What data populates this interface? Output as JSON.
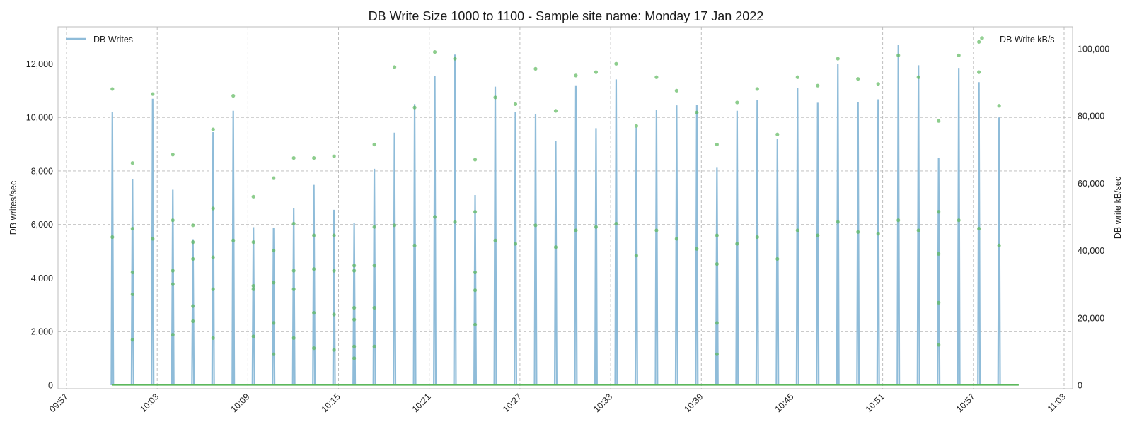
{
  "chart_data": {
    "type": "line",
    "title": "DB Write Size 1000 to 1100 - Sample site name: Monday 17 Jan 2022",
    "xlabel": "",
    "ylabel": "DB writes/sec",
    "y2label": "DB write kB/sec",
    "grid": true,
    "x_range": [
      "09:57",
      "11:03"
    ],
    "ylim": [
      0,
      13200
    ],
    "y2lim": [
      0,
      105000
    ],
    "x_ticks": [
      "09:57",
      "10:03",
      "10:09",
      "10:15",
      "10:21",
      "10:27",
      "10:33",
      "10:39",
      "10:45",
      "10:51",
      "10:57",
      "11:03"
    ],
    "y_ticks": [
      "0",
      "2,000",
      "4,000",
      "6,000",
      "8,000",
      "10,000",
      "12,000"
    ],
    "y_tick_values": [
      0,
      2000,
      4000,
      6000,
      8000,
      10000,
      12000
    ],
    "y2_ticks": [
      "0",
      "20,000",
      "40,000",
      "60,000",
      "80,000",
      "100,000"
    ],
    "y2_tick_values": [
      0,
      20000,
      40000,
      60000,
      80000,
      100000
    ],
    "legend": {
      "position": "top-left and top-right"
    },
    "series": [
      {
        "name": "DB Writes",
        "kind": "line",
        "axis": "left",
        "color": "#8fbcd9",
        "spikes": [
          {
            "x": "10:00:02",
            "y": 10200
          },
          {
            "x": "10:01:22",
            "y": 7700
          },
          {
            "x": "10:02:42",
            "y": 10700
          },
          {
            "x": "10:04:02",
            "y": 7300
          },
          {
            "x": "10:05:22",
            "y": 5450
          },
          {
            "x": "10:06:42",
            "y": 9450
          },
          {
            "x": "10:08:02",
            "y": 10250
          },
          {
            "x": "10:09:22",
            "y": 5900
          },
          {
            "x": "10:10:42",
            "y": 5880
          },
          {
            "x": "10:12:02",
            "y": 6620
          },
          {
            "x": "10:13:22",
            "y": 7480
          },
          {
            "x": "10:14:42",
            "y": 6550
          },
          {
            "x": "10:16:02",
            "y": 6050
          },
          {
            "x": "10:17:22",
            "y": 8080
          },
          {
            "x": "10:18:42",
            "y": 9430
          },
          {
            "x": "10:20:02",
            "y": 10500
          },
          {
            "x": "10:21:22",
            "y": 11550
          },
          {
            "x": "10:22:42",
            "y": 12350
          },
          {
            "x": "10:24:02",
            "y": 7100
          },
          {
            "x": "10:25:22",
            "y": 11150
          },
          {
            "x": "10:26:42",
            "y": 10200
          },
          {
            "x": "10:28:02",
            "y": 10130
          },
          {
            "x": "10:29:22",
            "y": 9120
          },
          {
            "x": "10:30:42",
            "y": 11200
          },
          {
            "x": "10:32:02",
            "y": 9600
          },
          {
            "x": "10:33:22",
            "y": 11420
          },
          {
            "x": "10:34:42",
            "y": 9620
          },
          {
            "x": "10:36:02",
            "y": 10280
          },
          {
            "x": "10:37:22",
            "y": 10450
          },
          {
            "x": "10:38:42",
            "y": 10470
          },
          {
            "x": "10:40:02",
            "y": 8120
          },
          {
            "x": "10:41:22",
            "y": 10250
          },
          {
            "x": "10:42:42",
            "y": 10640
          },
          {
            "x": "10:44:02",
            "y": 9200
          },
          {
            "x": "10:45:22",
            "y": 11100
          },
          {
            "x": "10:46:42",
            "y": 10550
          },
          {
            "x": "10:48:02",
            "y": 12000
          },
          {
            "x": "10:49:22",
            "y": 10560
          },
          {
            "x": "10:50:42",
            "y": 10680
          },
          {
            "x": "10:52:02",
            "y": 12700
          },
          {
            "x": "10:53:22",
            "y": 11950
          },
          {
            "x": "10:54:42",
            "y": 8500
          },
          {
            "x": "10:56:02",
            "y": 11850
          },
          {
            "x": "10:57:22",
            "y": 11320
          },
          {
            "x": "10:58:42",
            "y": 10000
          }
        ]
      },
      {
        "name": "DB Write kB/s",
        "kind": "scatter",
        "axis": "right",
        "color": "#5cb85c",
        "clusters": [
          {
            "x": "10:00:02",
            "y": [
              88000,
              44000
            ]
          },
          {
            "x": "10:01:22",
            "y": [
              66000,
              46500,
              33500,
              27000,
              13500
            ]
          },
          {
            "x": "10:02:42",
            "y": [
              86500,
              43500
            ]
          },
          {
            "x": "10:04:02",
            "y": [
              68500,
              49000,
              34000,
              30000,
              15000
            ]
          },
          {
            "x": "10:05:22",
            "y": [
              47500,
              42500,
              37500,
              23500,
              19000
            ]
          },
          {
            "x": "10:06:42",
            "y": [
              76000,
              52500,
              38000,
              28500,
              14000
            ]
          },
          {
            "x": "10:08:02",
            "y": [
              86000,
              43000
            ]
          },
          {
            "x": "10:09:22",
            "y": [
              56000,
              42500,
              29500,
              28500,
              14500
            ]
          },
          {
            "x": "10:10:42",
            "y": [
              61500,
              40000,
              30500,
              18500,
              9200
            ]
          },
          {
            "x": "10:12:02",
            "y": [
              67500,
              48000,
              34000,
              28500,
              14000
            ]
          },
          {
            "x": "10:13:22",
            "y": [
              67500,
              44500,
              34500,
              21500,
              11000
            ]
          },
          {
            "x": "10:14:42",
            "y": [
              68000,
              44500,
              34000,
              21000,
              10500
            ]
          },
          {
            "x": "10:16:02",
            "y": [
              35500,
              34000,
              23000,
              19500,
              11500,
              8000
            ]
          },
          {
            "x": "10:17:22",
            "y": [
              71500,
              47000,
              35500,
              23000,
              11500
            ]
          },
          {
            "x": "10:18:42",
            "y": [
              94500,
              47500
            ]
          },
          {
            "x": "10:20:02",
            "y": [
              82500,
              41500
            ]
          },
          {
            "x": "10:21:22",
            "y": [
              99000,
              50000
            ]
          },
          {
            "x": "10:22:42",
            "y": [
              97000,
              48500
            ]
          },
          {
            "x": "10:24:02",
            "y": [
              67000,
              51500,
              28200,
              33500,
              18000
            ]
          },
          {
            "x": "10:25:22",
            "y": [
              85500,
              43000
            ]
          },
          {
            "x": "10:26:42",
            "y": [
              83500,
              42000
            ]
          },
          {
            "x": "10:28:02",
            "y": [
              94000,
              47500
            ]
          },
          {
            "x": "10:29:22",
            "y": [
              81500,
              41000
            ]
          },
          {
            "x": "10:30:42",
            "y": [
              92000,
              46000
            ]
          },
          {
            "x": "10:32:02",
            "y": [
              93000,
              47000
            ]
          },
          {
            "x": "10:33:22",
            "y": [
              95500,
              48000
            ]
          },
          {
            "x": "10:34:42",
            "y": [
              77000,
              38500
            ]
          },
          {
            "x": "10:36:02",
            "y": [
              91500,
              46000
            ]
          },
          {
            "x": "10:37:22",
            "y": [
              87500,
              43500
            ]
          },
          {
            "x": "10:38:42",
            "y": [
              81000,
              40500
            ]
          },
          {
            "x": "10:40:02",
            "y": [
              71500,
              44500,
              36000,
              18500,
              9200
            ]
          },
          {
            "x": "10:41:22",
            "y": [
              84000,
              42000
            ]
          },
          {
            "x": "10:42:42",
            "y": [
              88000,
              44000
            ]
          },
          {
            "x": "10:44:02",
            "y": [
              74500,
              37500
            ]
          },
          {
            "x": "10:45:22",
            "y": [
              91500,
              46000
            ]
          },
          {
            "x": "10:46:42",
            "y": [
              89000,
              44500
            ]
          },
          {
            "x": "10:48:02",
            "y": [
              97000,
              48500
            ]
          },
          {
            "x": "10:49:22",
            "y": [
              91000,
              45500
            ]
          },
          {
            "x": "10:50:42",
            "y": [
              89500,
              45000
            ]
          },
          {
            "x": "10:52:02",
            "y": [
              98000,
              49000
            ]
          },
          {
            "x": "10:53:22",
            "y": [
              91500,
              46000
            ]
          },
          {
            "x": "10:54:42",
            "y": [
              78500,
              51500,
              39000,
              24500,
              12000
            ]
          },
          {
            "x": "10:56:02",
            "y": [
              98000,
              49000
            ]
          },
          {
            "x": "10:57:22",
            "y": [
              102000,
              93000,
              46500
            ]
          },
          {
            "x": "10:58:42",
            "y": [
              83000,
              41500
            ]
          }
        ]
      }
    ]
  }
}
